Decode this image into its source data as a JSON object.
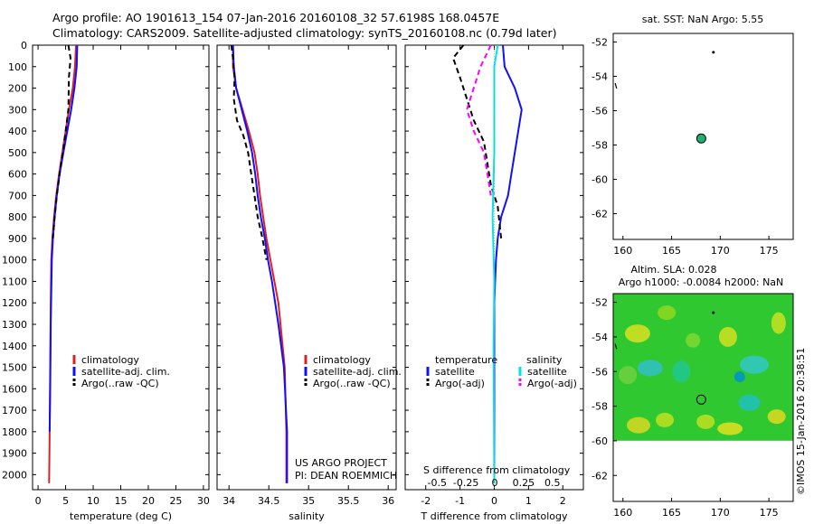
{
  "header": {
    "line1": "Argo profile: AO 1901613_154 07-Jan-2016 20160108_32 57.6198S 168.0457E",
    "line2": "Climatology: CARS2009. Satellite-adjusted climatology: synTS_20160108.nc (0.79d later)"
  },
  "footer_stamp": "©IMOS 15-Jan-2016 20:38:51",
  "colors": {
    "climatology": "#e02020",
    "satellite": "#1010ff",
    "argo": "#000000",
    "sat_salinity": "#00e5e5",
    "argo_salinity_adj": "#ff00ff",
    "float_marker": "#20b070"
  },
  "chart_data": [
    {
      "type": "line",
      "panel": "temperature",
      "xlabel": "temperature (deg C)",
      "ylabel": "",
      "xlim": [
        -1,
        31
      ],
      "ylim": [
        2070,
        0
      ],
      "xticks": [
        0,
        5,
        10,
        15,
        20,
        25,
        30
      ],
      "yticks": [
        0,
        100,
        200,
        300,
        400,
        500,
        600,
        700,
        800,
        900,
        1000,
        1100,
        1200,
        1300,
        1400,
        1500,
        1600,
        1700,
        1800,
        1900,
        2000
      ],
      "legend": [
        "climatology",
        "satellite-adj. clim.",
        "Argo(..raw -QC)"
      ],
      "legend_position": "bottom-right",
      "grid": false,
      "series": [
        {
          "name": "climatology",
          "style": "solid",
          "color": "#e02020",
          "x": [
            6.9,
            6.7,
            6.3,
            5.6,
            5.0,
            4.4,
            3.8,
            3.3,
            2.9,
            2.6,
            2.4,
            2.3,
            2.2,
            2.1,
            2.0
          ],
          "y": [
            0,
            100,
            200,
            300,
            400,
            500,
            600,
            700,
            800,
            900,
            1000,
            1200,
            1500,
            1800,
            2040
          ]
        },
        {
          "name": "satellite-adj. clim.",
          "style": "solid",
          "color": "#1010ff",
          "x": [
            7.1,
            7.0,
            6.6,
            6.0,
            5.3,
            4.6,
            3.9,
            3.4,
            3.0,
            2.7,
            2.5,
            2.3,
            2.2,
            2.1
          ],
          "y": [
            0,
            100,
            200,
            300,
            400,
            500,
            600,
            700,
            800,
            900,
            1000,
            1300,
            1600,
            1800
          ]
        },
        {
          "name": "Argo(..raw -QC)",
          "style": "dashed",
          "color": "#000000",
          "x": [
            5.5,
            5.9,
            5.6,
            5.5,
            5.0,
            4.5,
            3.9,
            3.4,
            3.0,
            2.7
          ],
          "y": [
            0,
            60,
            150,
            300,
            400,
            500,
            600,
            700,
            800,
            900
          ]
        }
      ],
      "annotations": []
    },
    {
      "type": "line",
      "panel": "salinity",
      "xlabel": "salinity",
      "ylabel": "",
      "xlim": [
        33.85,
        36.1
      ],
      "ylim": [
        2070,
        0
      ],
      "xticks": [
        34,
        34.5,
        35,
        35.5,
        36
      ],
      "legend": [
        "climatology",
        "satellite-adj. clim.",
        "Argo(..raw -QC)"
      ],
      "legend_position": "bottom-right",
      "grid": false,
      "series": [
        {
          "name": "climatology",
          "style": "solid",
          "color": "#e02020",
          "x": [
            34.05,
            34.05,
            34.09,
            34.17,
            34.25,
            34.32,
            34.36,
            34.39,
            34.43,
            34.47,
            34.52,
            34.62,
            34.7,
            34.72,
            34.72
          ],
          "y": [
            0,
            100,
            200,
            300,
            400,
            500,
            600,
            700,
            800,
            900,
            1000,
            1200,
            1500,
            1800,
            2040
          ]
        },
        {
          "name": "satellite-adj. clim.",
          "style": "solid",
          "color": "#1010ff",
          "x": [
            34.05,
            34.06,
            34.09,
            34.16,
            34.23,
            34.29,
            34.33,
            34.36,
            34.4,
            34.45,
            34.49,
            34.54,
            34.62,
            34.69,
            34.73,
            34.73
          ],
          "y": [
            0,
            100,
            200,
            300,
            400,
            500,
            600,
            700,
            800,
            900,
            1000,
            1100,
            1300,
            1500,
            1800,
            2040
          ]
        },
        {
          "name": "Argo(..raw -QC)",
          "style": "dashed",
          "color": "#000000",
          "x": [
            34.03,
            34.05,
            34.07,
            34.06,
            34.1,
            34.18,
            34.24,
            34.28,
            34.32,
            34.36,
            34.42,
            34.47
          ],
          "y": [
            0,
            60,
            150,
            250,
            350,
            420,
            500,
            600,
            700,
            800,
            900,
            1000
          ]
        }
      ],
      "annotations": [
        "US ARGO PROJECT",
        "PI: DEAN ROEMMICH"
      ]
    },
    {
      "type": "line",
      "panel": "difference",
      "xlabel": "T difference from climatology",
      "title": "S difference from climatology",
      "ylabel": "",
      "xlim": [
        -2.6,
        2.6
      ],
      "ylim": [
        2070,
        0
      ],
      "xticks": [
        -2,
        -1,
        0,
        1,
        2
      ],
      "s_ticks": [
        -0.5,
        -0.25,
        0,
        0.25,
        0.5
      ],
      "legend": [
        "temperature",
        "satellite",
        "Argo(-adj)",
        "salinity",
        "satellite",
        "Argo(-adj)"
      ],
      "legend_position": "bottom",
      "grid": false,
      "series": [
        {
          "name": "satellite",
          "variable": "temperature",
          "style": "solid",
          "color": "#1010ff",
          "x": [
            0.25,
            0.3,
            0.6,
            0.8,
            0.7,
            0.6,
            0.5,
            0.4,
            0.2,
            0.1,
            0.05,
            0.0,
            0.0,
            0.0
          ],
          "y": [
            0,
            100,
            200,
            300,
            400,
            500,
            600,
            700,
            800,
            900,
            1000,
            1200,
            1600,
            2040
          ]
        },
        {
          "name": "Argo(-adj)",
          "variable": "temperature",
          "style": "dashed",
          "color": "#000000",
          "x": [
            -0.9,
            -1.2,
            -1.0,
            -0.8,
            -0.6,
            -0.3,
            -0.2,
            -0.1,
            0.1,
            0.2
          ],
          "y": [
            0,
            60,
            150,
            250,
            350,
            450,
            550,
            650,
            750,
            900
          ]
        },
        {
          "name": "satellite",
          "variable": "salinity",
          "style": "solid",
          "color": "#00e5e5",
          "x": [
            0.1,
            0.0,
            0.0,
            0.0,
            0.0,
            -0.05,
            0.0,
            -0.02,
            0.0
          ],
          "y": [
            0,
            100,
            200,
            300,
            500,
            800,
            1100,
            1400,
            2040
          ]
        },
        {
          "name": "Argo(-adj)",
          "variable": "salinity",
          "style": "dashed",
          "color": "#ff00ff",
          "x": [
            -0.1,
            -0.4,
            -0.6,
            -0.8,
            -0.6,
            -0.3,
            -0.1
          ],
          "y": [
            0,
            100,
            200,
            300,
            400,
            500,
            700
          ]
        }
      ],
      "annotations": []
    },
    {
      "type": "scatter",
      "panel": "location_sst",
      "title": "sat. SST: NaN Argo: 5.55",
      "xlim": [
        159,
        177.5
      ],
      "ylim": [
        -63.5,
        -51.5
      ],
      "xticks": [
        160,
        165,
        170,
        175
      ],
      "yticks": [
        -52,
        -54,
        -56,
        -58,
        -60,
        -62
      ],
      "points": [
        {
          "label": "float",
          "x": 168.05,
          "y": -57.62,
          "color": "#20b070"
        },
        {
          "label": "previous",
          "x": 169.3,
          "y": -52.6,
          "color": "#000000"
        }
      ]
    },
    {
      "type": "heatmap",
      "panel": "location_sla",
      "title": "Altim. SLA: 0.028",
      "subtitle": "Argo h1000: -0.0084 h2000: NaN",
      "xlim": [
        159,
        177.5
      ],
      "ylim": [
        -63.5,
        -51.5
      ],
      "xticks": [
        160,
        165,
        170,
        175
      ],
      "yticks": [
        -52,
        -54,
        -56,
        -58,
        -60,
        -62
      ],
      "points": [
        {
          "label": "float",
          "x": 168.05,
          "y": -57.62
        },
        {
          "label": "previous",
          "x": 169.3,
          "y": -52.6
        }
      ]
    }
  ]
}
